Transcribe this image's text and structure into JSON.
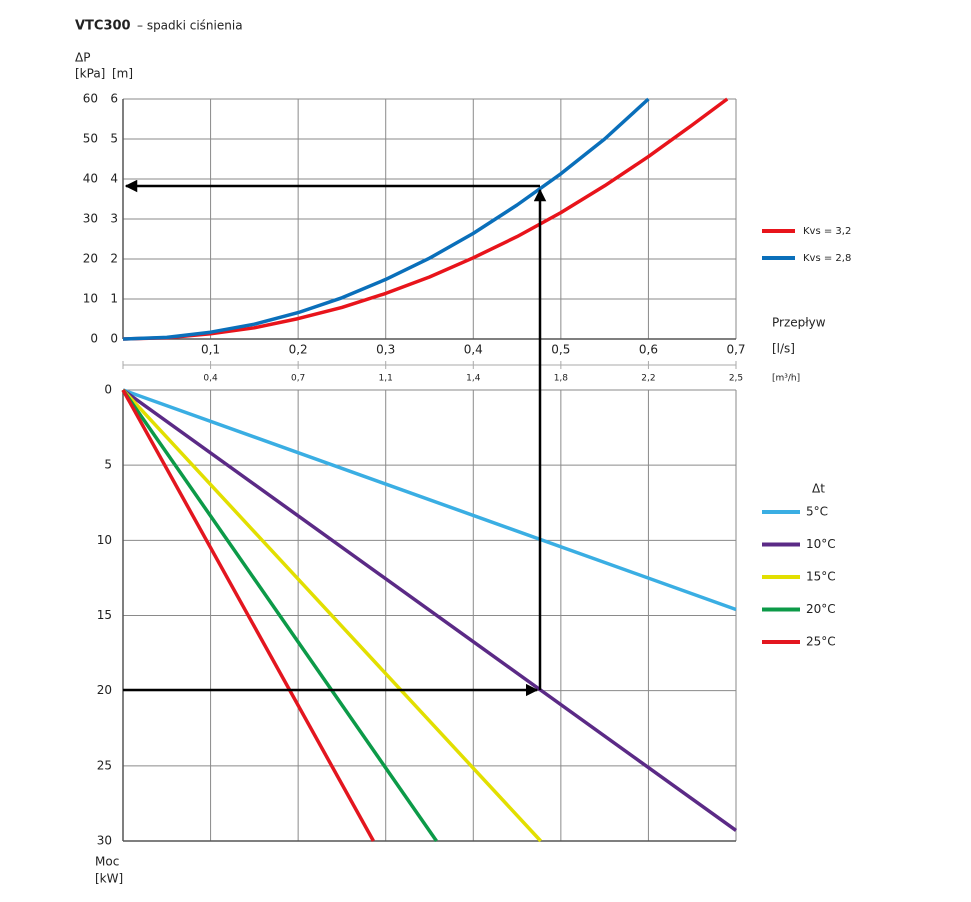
{
  "chart_data": [
    {
      "type": "line",
      "title": "VTC300",
      "subtitle": "– spadki ciśnienia",
      "y_label": "ΔP",
      "y_unit": "[kPa]",
      "y2_unit": "[m]",
      "x_label": "Przepływ",
      "x_unit": "[l/s]",
      "x2_unit": "[m³/h]",
      "xlim": [
        0,
        0.7
      ],
      "ylim": [
        0,
        60
      ],
      "y2lim": [
        0,
        6
      ],
      "grid": true,
      "xticks": [
        {
          "value": 0.1,
          "label": "0,1"
        },
        {
          "value": 0.2,
          "label": "0,2"
        },
        {
          "value": 0.3,
          "label": "0,3"
        },
        {
          "value": 0.4,
          "label": "0,4"
        },
        {
          "value": 0.5,
          "label": "0,5"
        },
        {
          "value": 0.6,
          "label": "0,6"
        },
        {
          "value": 0.7,
          "label": "0,7"
        }
      ],
      "x2ticks": [
        {
          "value": 0.1,
          "label": "0,4"
        },
        {
          "value": 0.2,
          "label": "0,7"
        },
        {
          "value": 0.3,
          "label": "1,1"
        },
        {
          "value": 0.4,
          "label": "1,4"
        },
        {
          "value": 0.5,
          "label": "1,8"
        },
        {
          "value": 0.6,
          "label": "2,2"
        },
        {
          "value": 0.7,
          "label": "2,5"
        }
      ],
      "yticks": [
        0,
        10,
        20,
        30,
        40,
        50,
        60
      ],
      "y2ticks": [
        0,
        1,
        2,
        3,
        4,
        5,
        6
      ],
      "x": [
        0,
        0.05,
        0.1,
        0.15,
        0.2,
        0.25,
        0.3,
        0.35,
        0.4,
        0.45,
        0.5,
        0.55,
        0.6,
        0.65,
        0.69
      ],
      "series": [
        {
          "name": "Kvs = 3,2",
          "color": "#e8141b",
          "values": [
            0,
            0.3,
            1.3,
            2.8,
            5.1,
            7.9,
            11.4,
            15.5,
            20.3,
            25.6,
            31.6,
            38.3,
            45.6,
            53.5,
            60
          ]
        },
        {
          "name": "Kvs = 2,8",
          "color": "#0a6fba",
          "values": [
            0,
            0.4,
            1.7,
            3.7,
            6.6,
            10.3,
            14.9,
            20.2,
            26.4,
            33.5,
            41.3,
            50,
            60,
            null,
            null
          ]
        }
      ]
    },
    {
      "type": "line",
      "y_label": "Moc",
      "y_unit": "[kW]",
      "legend_title": "Δt",
      "xlim": [
        0,
        0.7
      ],
      "ylim": [
        0,
        30
      ],
      "y_inverted": true,
      "grid": true,
      "xticks": [
        0.1,
        0.2,
        0.3,
        0.4,
        0.5,
        0.6,
        0.7
      ],
      "yticks": [
        0,
        5,
        10,
        15,
        20,
        25,
        30
      ],
      "series": [
        {
          "name": "5°C",
          "color": "#3aaee3",
          "x": [
            0,
            0.7
          ],
          "values": [
            0,
            14.6
          ]
        },
        {
          "name": "10°C",
          "color": "#5b2a86",
          "x": [
            0,
            0.7
          ],
          "values": [
            0,
            29.3
          ]
        },
        {
          "name": "15°C",
          "color": "#e2df00",
          "x": [
            0,
            0.477
          ],
          "values": [
            0,
            30
          ]
        },
        {
          "name": "20°C",
          "color": "#0c9a48",
          "x": [
            0,
            0.358
          ],
          "values": [
            0,
            30
          ]
        },
        {
          "name": "25°C",
          "color": "#e3161f",
          "x": [
            0,
            0.286
          ],
          "values": [
            0,
            30
          ]
        }
      ]
    }
  ]
}
